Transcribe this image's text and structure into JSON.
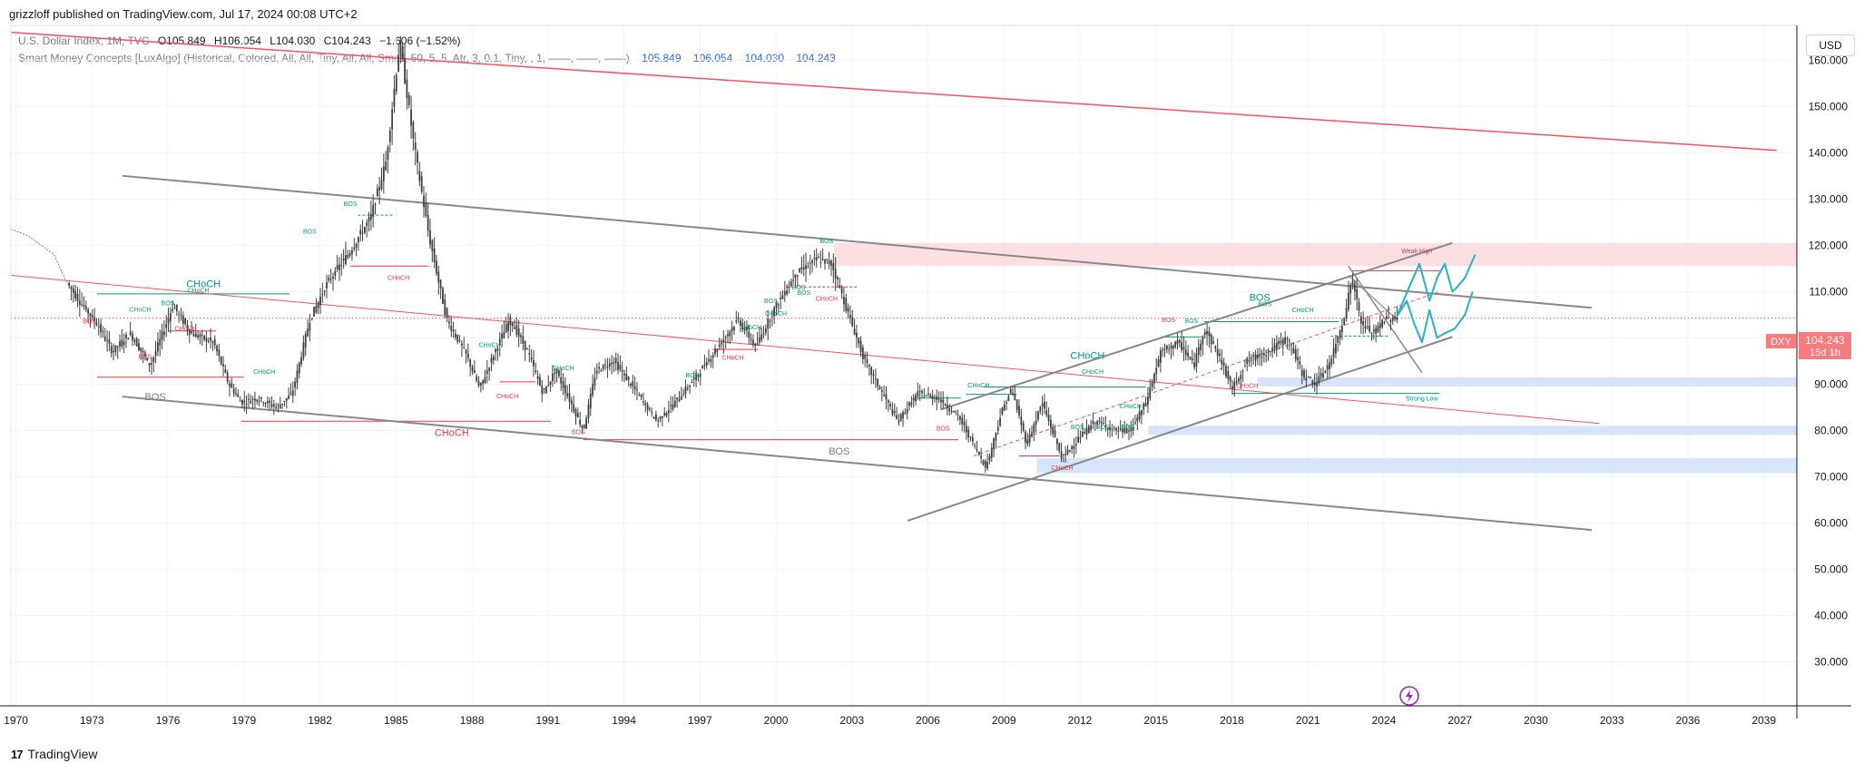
{
  "header": {
    "published": "grizzloff published on TradingView.com, Jul 17, 2024 00:08 UTC+2"
  },
  "legend": {
    "symbol": "U.S. Dollar Index, 1M, TVC",
    "ohlc": {
      "o": "O105.849",
      "h": "H106.054",
      "l": "L104.030",
      "c": "C104.243"
    },
    "change": "−1.606 (−1.52%)",
    "indicator": "Smart Money Concepts [LuxAlgo] (Historical, Colored, All, All, Tiny, All, All, Small, 50, 5, 5, Atr, 3, 0.1, Tiny, , 1, ——, ——, ——)",
    "indicator_values": [
      "105.849",
      "106.054",
      "104.030",
      "104.243"
    ]
  },
  "currency_button": "USD",
  "price_label": {
    "symbol": "DXY",
    "price": "104.243",
    "countdown": "15d 1h"
  },
  "branding": "TradingView",
  "colors": {
    "grid": "#f0f3fa",
    "axis_text": "#131722",
    "candle": "#404040",
    "resistance_red": "#f7525f",
    "channel_gray": "#888888",
    "bullish_green": "#089981",
    "bearish_red": "#f23645",
    "supply_zone": "#fcd9dc",
    "demand_zone": "#cfe0fb",
    "projection": "#26b3c9",
    "price_tag": "#f77c80"
  },
  "chart_data": {
    "type": "candlestick",
    "title": "",
    "xlabel": "",
    "ylabel": "",
    "x_ticks": [
      "1970",
      "1973",
      "1976",
      "1979",
      "1982",
      "1985",
      "1988",
      "1991",
      "1994",
      "1997",
      "2000",
      "2003",
      "2006",
      "2009",
      "2012",
      "2015",
      "2018",
      "2021",
      "2024",
      "2027",
      "2030",
      "2033",
      "2036",
      "2039"
    ],
    "y_ticks": [
      "30.000",
      "40.000",
      "50.000",
      "60.000",
      "70.000",
      "80.000",
      "90.000",
      "100.000",
      "110.000",
      "120.000",
      "130.000",
      "140.000",
      "150.000",
      "160.000"
    ],
    "xlim": [
      1969.8,
      2040.3
    ],
    "ylim": [
      20.5,
      167.5
    ],
    "grid": true,
    "last_price": 104.243,
    "series": [
      {
        "values": [
          [
            1969.8,
            123.5
          ],
          [
            1970.5,
            122
          ],
          [
            1971.5,
            118
          ],
          [
            1972,
            112
          ],
          [
            1972.5,
            108
          ],
          [
            1973.2,
            103
          ],
          [
            1973.8,
            97
          ],
          [
            1974.5,
            101
          ],
          [
            1975.3,
            94
          ],
          [
            1976.2,
            107
          ],
          [
            1976.9,
            101
          ],
          [
            1977.8,
            99
          ],
          [
            1978.4,
            90
          ],
          [
            1978.9,
            86
          ],
          [
            1979.5,
            87
          ],
          [
            1980.3,
            85
          ],
          [
            1980.9,
            88
          ],
          [
            1981.6,
            104
          ],
          [
            1982.3,
            112
          ],
          [
            1983.1,
            118
          ],
          [
            1984,
            126
          ],
          [
            1984.6,
            138
          ],
          [
            1985.15,
            164
          ],
          [
            1985.7,
            142
          ],
          [
            1986.3,
            122
          ],
          [
            1987,
            104
          ],
          [
            1987.8,
            96
          ],
          [
            1988.3,
            89
          ],
          [
            1988.9,
            97
          ],
          [
            1989.5,
            104
          ],
          [
            1990.2,
            97
          ],
          [
            1990.8,
            88
          ],
          [
            1991.3,
            93
          ],
          [
            1991.9,
            86
          ],
          [
            1992.4,
            80
          ],
          [
            1992.9,
            93
          ],
          [
            1993.6,
            95
          ],
          [
            1994.4,
            89
          ],
          [
            1995.3,
            82
          ],
          [
            1996,
            86
          ],
          [
            1996.9,
            92
          ],
          [
            1997.7,
            98
          ],
          [
            1998.5,
            104
          ],
          [
            1999.2,
            98
          ],
          [
            1999.9,
            106
          ],
          [
            2000.8,
            114
          ],
          [
            2001.6,
            117
          ],
          [
            2002.2,
            116
          ],
          [
            2002.8,
            106
          ],
          [
            2003.5,
            95
          ],
          [
            2004.2,
            88
          ],
          [
            2004.8,
            82
          ],
          [
            2005.6,
            88
          ],
          [
            2006.4,
            87
          ],
          [
            2007.2,
            83
          ],
          [
            2007.9,
            76
          ],
          [
            2008.3,
            72
          ],
          [
            2008.9,
            84
          ],
          [
            2009.3,
            89
          ],
          [
            2009.9,
            77
          ],
          [
            2010.5,
            86
          ],
          [
            2011.3,
            74
          ],
          [
            2011.9,
            78
          ],
          [
            2012.6,
            82
          ],
          [
            2013.4,
            80
          ],
          [
            2014,
            80
          ],
          [
            2014.6,
            86
          ],
          [
            2015.2,
            97
          ],
          [
            2015.9,
            99
          ],
          [
            2016.5,
            94
          ],
          [
            2016.9,
            102
          ],
          [
            2017.5,
            96
          ],
          [
            2018,
            89
          ],
          [
            2018.6,
            95
          ],
          [
            2019.4,
            97
          ],
          [
            2020.2,
            100
          ],
          [
            2020.8,
            92
          ],
          [
            2021.3,
            90
          ],
          [
            2021.9,
            95
          ],
          [
            2022.4,
            104
          ],
          [
            2022.75,
            113
          ],
          [
            2023.1,
            103
          ],
          [
            2023.6,
            101
          ],
          [
            2024,
            104
          ],
          [
            2024.5,
            104.2
          ]
        ]
      }
    ],
    "annotations": {
      "green": [
        {
          "label": "CHoCH",
          "x": 1977.2,
          "y": 109.8
        },
        {
          "label": "CHoCH",
          "x": 1974.9,
          "y": 105.7
        },
        {
          "label": "BOS",
          "x": 1976,
          "y": 107
        },
        {
          "label": "BOS",
          "x": 1981.6,
          "y": 122.5
        },
        {
          "label": "BOS",
          "x": 1983.2,
          "y": 128.5
        },
        {
          "label": "CHoCH",
          "x": 1979.8,
          "y": 92.2
        },
        {
          "label": "CHoCH",
          "x": 1988.7,
          "y": 98
        },
        {
          "label": "CHoCH",
          "x": 1991.6,
          "y": 93
        },
        {
          "label": "BOS",
          "x": 1996.7,
          "y": 91.5
        },
        {
          "label": "CHoCH",
          "x": 1999,
          "y": 101.8
        },
        {
          "label": "CHoCH",
          "x": 2000,
          "y": 104.8
        },
        {
          "label": "BOS",
          "x": 1999.8,
          "y": 107.5
        },
        {
          "label": "BOS",
          "x": 2001.1,
          "y": 109.3
        },
        {
          "label": "BOS",
          "x": 2000.9,
          "y": 110.5
        },
        {
          "label": "BOS",
          "x": 2002,
          "y": 120.5
        },
        {
          "label": "CHoCH",
          "x": 2008,
          "y": 89.3
        },
        {
          "label": "CHoCH",
          "x": 2012.5,
          "y": 92.2
        },
        {
          "label": "CHoCH",
          "x": 2014,
          "y": 84.8
        },
        {
          "label": "BOS",
          "x": 2011.9,
          "y": 80.3
        },
        {
          "label": "BOS",
          "x": 2012.9,
          "y": 80.3
        },
        {
          "label": "BOS",
          "x": 2013.9,
          "y": 80.3
        },
        {
          "label": "BOS",
          "x": 2016.4,
          "y": 103.2
        },
        {
          "label": "BOS",
          "x": 2019.3,
          "y": 106.8
        },
        {
          "label": "CHoCH",
          "x": 2020.8,
          "y": 105.6
        },
        {
          "label": "Strong Low",
          "x": 2025.5,
          "y": 86.5
        }
      ],
      "red": [
        {
          "label": "BOS",
          "x": 1972.9,
          "y": 103.1
        },
        {
          "label": "BOS",
          "x": 1975.1,
          "y": 95.5
        },
        {
          "label": "CHoCH",
          "x": 1976.7,
          "y": 101.5
        },
        {
          "label": "CHoCH",
          "x": 1985.1,
          "y": 112.5
        },
        {
          "label": "CHoCH",
          "x": 1989.4,
          "y": 86.9
        },
        {
          "label": "BOS",
          "x": 1992.2,
          "y": 79.2
        },
        {
          "label": "CHoCH",
          "x": 1998.3,
          "y": 95.3
        },
        {
          "label": "CHoCH",
          "x": 2002,
          "y": 108
        },
        {
          "label": "BOS",
          "x": 2006.6,
          "y": 80
        },
        {
          "label": "CHoCH",
          "x": 2011.3,
          "y": 71.5
        },
        {
          "label": "BOS",
          "x": 2015.5,
          "y": 103.4
        },
        {
          "label": "CHoCH",
          "x": 2018.6,
          "y": 89.2
        },
        {
          "label": "Weak High",
          "x": 2025.3,
          "y": 118.3
        }
      ],
      "large": [
        {
          "label": "CHoCH",
          "x": 1977.4,
          "y": 111,
          "color": "green"
        },
        {
          "label": "BOS",
          "x": 1975.5,
          "y": 86.6,
          "color": "gray"
        },
        {
          "label": "CHoCH",
          "x": 1987.2,
          "y": 78.8,
          "color": "red"
        },
        {
          "label": "BOS",
          "x": 2002.5,
          "y": 74.8,
          "color": "gray"
        },
        {
          "label": "CHoCH",
          "x": 2012.3,
          "y": 95.5,
          "color": "green"
        },
        {
          "label": "BOS",
          "x": 2019.1,
          "y": 108,
          "color": "green"
        }
      ]
    },
    "zones": [
      {
        "kind": "supply",
        "y_from": 115.5,
        "y_to": 120.5
      },
      {
        "kind": "demand",
        "y_from": 89.5,
        "y_to": 91.5
      },
      {
        "kind": "demand",
        "y_from": 79,
        "y_to": 81
      },
      {
        "kind": "demand",
        "y_from": 70.8,
        "y_to": 74
      }
    ]
  }
}
